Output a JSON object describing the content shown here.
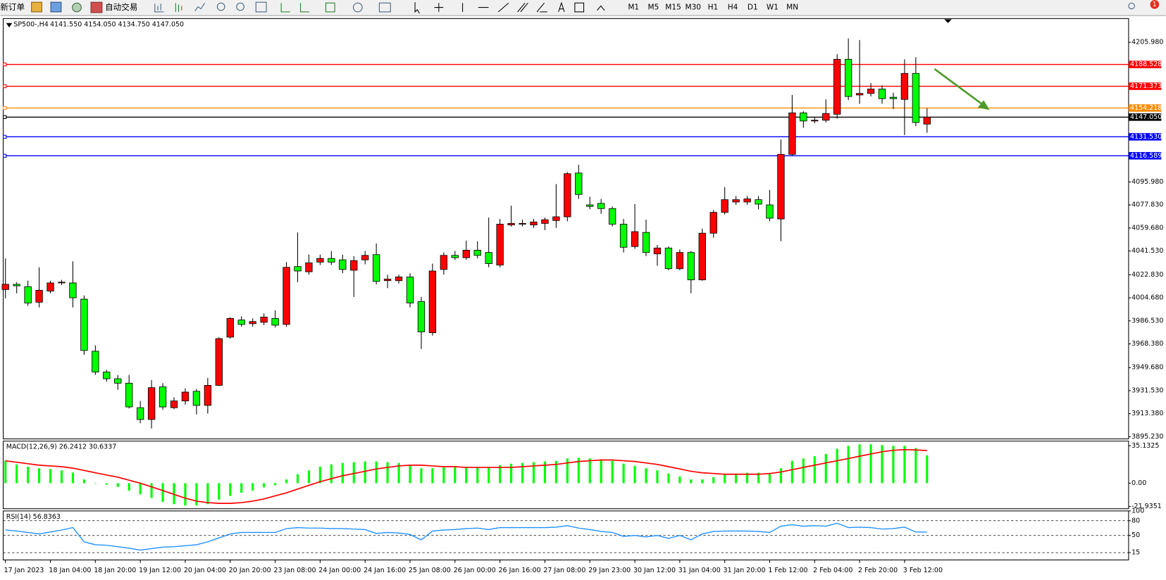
{
  "toolbar": {
    "new_order": "新订单",
    "auto_trading": "自动交易",
    "timeframes": [
      "M1",
      "M5",
      "M15",
      "M30",
      "H1",
      "H4",
      "D1",
      "W1",
      "MN"
    ],
    "notification": "1"
  },
  "chart_data": [
    {
      "type": "candlestick",
      "title": "SP500-,H4",
      "subtitle": "4141.550 4154.050 4134.750 4147.050",
      "categories": [
        "17 Jan 2023",
        null,
        null,
        null,
        "18 Jan 04:00",
        null,
        null,
        null,
        "18 Jan 20:00",
        null,
        null,
        null,
        "19 Jan 12:00",
        null,
        null,
        null,
        "20 Jan 04:00",
        null,
        null,
        null,
        "20 Jan 20:00",
        null,
        null,
        null,
        "23 Jan 08:00",
        null,
        null,
        null,
        "24 Jan 00:00",
        null,
        null,
        null,
        "24 Jan 16:00",
        null,
        null,
        null,
        "25 Jan 08:00",
        null,
        null,
        null,
        "26 Jan 00:00",
        null,
        null,
        null,
        "26 Jan 16:00",
        null,
        null,
        null,
        "27 Jan 08:00",
        null,
        null,
        null,
        "29 Jan 23:00",
        null,
        null,
        null,
        "30 Jan 12:00",
        null,
        null,
        null,
        "31 Jan 04:00",
        null,
        null,
        null,
        "31 Jan 20:00",
        null,
        null,
        null,
        "1 Feb 12:00",
        null,
        null,
        null,
        "2 Feb 04:00",
        null,
        null,
        null,
        "2 Feb 20:00",
        null,
        null,
        null,
        "3 Feb 12:00",
        null,
        null
      ],
      "open": [
        4011.2,
        4015.3,
        4013.5,
        4001.2,
        4010.0,
        4016.4,
        4016.4,
        4003.6,
        3962.6,
        3946.2,
        3940.9,
        3937.4,
        3918.1,
        3908.8,
        3934.5,
        3918.1,
        3923.4,
        3931.0,
        3919.9,
        3935.7,
        3973.7,
        3987.2,
        3984.3,
        3985.4,
        3988.4,
        3983.7,
        4029.3,
        4025.2,
        4032.8,
        4035.7,
        4034.6,
        4026.4,
        4034.6,
        4038.7,
        4018.2,
        4018.2,
        4021.1,
        4001.8,
        3977.2,
        4027.0,
        4038.1,
        4036.3,
        4042.2,
        4040.4,
        4030.5,
        4062.1,
        4062.7,
        4062.1,
        4063.3,
        4065.6,
        4068.5,
        4103.0,
        4077.9,
        4079.1,
        4075.0,
        4062.7,
        4045.1,
        4056.2,
        4039.3,
        4043.9,
        4027.6,
        4040.4,
        4018.8,
        4055.6,
        4072.0,
        4080.2,
        4080.2,
        4082.0,
        4077.9,
        4066.8,
        4117.7,
        4150.4,
        4144.0,
        4144.6,
        4149.3,
        4192.6,
        4164.5,
        4165.7,
        4169.2,
        4162.7,
        4161.0,
        4181.5,
        4141.55
      ],
      "high": [
        4035.7,
        4017.0,
        4018.2,
        4028.7,
        4018.2,
        4018.8,
        4033.4,
        4006.5,
        3967.3,
        3948.0,
        3943.9,
        3943.9,
        3923.4,
        3939.8,
        3937.4,
        3926.3,
        3933.3,
        3932.8,
        3941.5,
        3973.7,
        3989.5,
        3990.1,
        3988.4,
        3992.4,
        3994.8,
        4032.8,
        4056.2,
        4038.7,
        4038.7,
        4041.6,
        4038.7,
        4037.5,
        4041.6,
        4047.5,
        4022.9,
        4022.9,
        4024.0,
        4005.3,
        4031.6,
        4040.4,
        4041.6,
        4049.8,
        4049.2,
        4067.9,
        4066.8,
        4077.3,
        4066.2,
        4066.8,
        4067.9,
        4094.3,
        4103.7,
        4109.5,
        4084.3,
        4082.6,
        4076.7,
        4066.8,
        4078.5,
        4066.2,
        4046.3,
        4045.1,
        4042.8,
        4041.6,
        4059.2,
        4073.8,
        4091.9,
        4084.9,
        4084.9,
        4084.9,
        4089.6,
        4129.4,
        4164.5,
        4151.6,
        4146.9,
        4161.0,
        4196.7,
        4209.0,
        4207.8,
        4173.9,
        4172.1,
        4166.3,
        4192.6,
        4194.3,
        4154.05
      ],
      "low": [
        4004.2,
        4008.2,
        3998.3,
        3997.1,
        4008.2,
        4014.7,
        3997.1,
        3959.7,
        3943.9,
        3938.6,
        3932.2,
        3917.5,
        3905.8,
        3901.7,
        3916.4,
        3916.9,
        3920.5,
        3912.8,
        3913.4,
        3935.1,
        3972.5,
        3981.9,
        3981.9,
        3983.1,
        3981.3,
        3981.9,
        4017.0,
        4022.9,
        4030.5,
        4030.5,
        4024.0,
        4005.3,
        4031.0,
        4015.3,
        4012.3,
        4015.9,
        3997.1,
        3964.3,
        3974.9,
        4022.9,
        4034.6,
        4034.6,
        4035.7,
        4028.7,
        4028.7,
        4060.9,
        4060.9,
        4059.8,
        4058.0,
        4059.8,
        4065.0,
        4082.6,
        4074.4,
        4070.9,
        4060.9,
        4040.4,
        4043.3,
        4037.5,
        4029.9,
        4026.4,
        4026.4,
        4008.2,
        4018.2,
        4052.1,
        4070.3,
        4077.9,
        4077.9,
        4074.4,
        4065.0,
        4049.2,
        4116.5,
        4138.7,
        4142.2,
        4142.8,
        4145.8,
        4160.4,
        4157.5,
        4163.3,
        4157.5,
        4153.4,
        4132.9,
        4139.9,
        4134.75
      ],
      "close": [
        4015.3,
        4014.1,
        4000.6,
        4010.6,
        4016.4,
        4017.0,
        4004.7,
        3963.2,
        3946.2,
        3940.9,
        3937.4,
        3918.7,
        3908.8,
        3933.9,
        3918.7,
        3923.4,
        3930.4,
        3919.9,
        3935.7,
        3972.5,
        3988.4,
        3983.7,
        3986.0,
        3989.5,
        3983.1,
        4028.7,
        4025.8,
        4032.2,
        4035.7,
        4032.8,
        4027.0,
        4034.0,
        4038.1,
        4017.6,
        4019.4,
        4021.1,
        4000.6,
        3977.8,
        4025.8,
        4038.1,
        4036.3,
        4042.2,
        4038.1,
        4031.6,
        4062.7,
        4063.3,
        4063.3,
        4064.4,
        4066.2,
        4068.5,
        4102.5,
        4086.1,
        4076.7,
        4075.0,
        4062.7,
        4044.5,
        4056.8,
        4040.4,
        4043.9,
        4027.6,
        4040.4,
        4018.8,
        4055.6,
        4072.0,
        4082.0,
        4082.0,
        4082.6,
        4078.5,
        4067.4,
        4117.7,
        4150.4,
        4144.0,
        4144.6,
        4149.9,
        4192.6,
        4163.3,
        4165.7,
        4169.2,
        4161.6,
        4161.6,
        4181.5,
        4142.8,
        4147.05
      ],
      "up_color": "#ff0000",
      "down_color": "#00ff00",
      "ylim": [
        3893.5,
        4224.7
      ],
      "yticks": [
        {
          "value": 4205.98,
          "label": "4205.980"
        },
        {
          "value": 4095.98,
          "label": "4095.980"
        },
        {
          "value": 4077.83,
          "label": "4077.830"
        },
        {
          "value": 4059.68,
          "label": "4059.680"
        },
        {
          "value": 4041.53,
          "label": "4041.530"
        },
        {
          "value": 4022.83,
          "label": "4022.830"
        },
        {
          "value": 4004.68,
          "label": "4004.680"
        },
        {
          "value": 3986.53,
          "label": "3986.530"
        },
        {
          "value": 3968.38,
          "label": "3968.380"
        },
        {
          "value": 3949.68,
          "label": "3949.680"
        },
        {
          "value": 3931.53,
          "label": "3931.530"
        },
        {
          "value": 3913.38,
          "label": "3913.380"
        },
        {
          "value": 3895.23,
          "label": "3895.230"
        }
      ],
      "levels": [
        {
          "value": 4188.528,
          "color": "#ff0000"
        },
        {
          "value": 4171.373,
          "color": "#ff0000"
        },
        {
          "value": 4154.218,
          "color": "#ff8c00"
        },
        {
          "value": 4147.05,
          "label": "4147.050",
          "color": "#000000"
        },
        {
          "value": 4131.53,
          "label": "4131.530",
          "color": "#0000ff"
        },
        {
          "value": 4116.589,
          "color": "#0000ff"
        }
      ]
    },
    {
      "type": "macd",
      "title": "MACD(12,26,9) 26.2412 30.6337",
      "series": [
        {
          "color": "#00ff00",
          "values": [
            21,
            17.6,
            15.5,
            14,
            13.3,
            12,
            10,
            3.5,
            0,
            -1.4,
            -3.5,
            -7,
            -10.5,
            -14,
            -17.6,
            -19.7,
            -21,
            -21,
            -19.7,
            -15.5,
            -12,
            -9,
            -7,
            -4,
            -2,
            3.5,
            8.4,
            12,
            15.5,
            17.6,
            19,
            19.7,
            20.4,
            20.4,
            19.7,
            19,
            16.9,
            14,
            14,
            14.8,
            14.8,
            15.5,
            15.5,
            15.5,
            16.9,
            18.3,
            19,
            19.7,
            20.4,
            21,
            23.2,
            23.9,
            23.2,
            22.5,
            21,
            18.3,
            16.2,
            14,
            12,
            9.1,
            6.3,
            3.5,
            3.5,
            5.6,
            8.4,
            9.1,
            9.8,
            9.8,
            9.1,
            14,
            21,
            23.2,
            25.3,
            27.4,
            32.3,
            35.1,
            36.5,
            36.5,
            35.8,
            35.1,
            35.1,
            33,
            26.2412
          ]
        },
        {
          "color": "#ff0000",
          "values": [
            21,
            19.7,
            18.3,
            16.9,
            16.2,
            15.5,
            14.1,
            12,
            9.8,
            7.7,
            5.6,
            2.8,
            0,
            -3.5,
            -7,
            -10.5,
            -14.1,
            -16.9,
            -18.3,
            -19,
            -19,
            -18.3,
            -16.9,
            -14.8,
            -11.9,
            -9.1,
            -5.6,
            -2.1,
            1.4,
            4.2,
            7,
            9.1,
            11.2,
            13.4,
            14.8,
            16.2,
            16.9,
            16.9,
            16.2,
            15.5,
            15.5,
            14.8,
            14.8,
            14.8,
            14.8,
            14.8,
            15.5,
            16.2,
            16.9,
            17.6,
            19,
            20.4,
            21.1,
            21.8,
            21.8,
            21.1,
            20.4,
            19,
            17.6,
            15.5,
            13.4,
            11.2,
            9.8,
            9.1,
            8.4,
            8.4,
            8.4,
            8.4,
            9.1,
            10.5,
            12.6,
            14.8,
            16.9,
            19,
            21.1,
            23.2,
            25.3,
            27.4,
            29.5,
            30.9,
            31.5,
            31.2,
            30.6337
          ]
        }
      ],
      "ylim": [
        -24,
        39.5
      ],
      "yticks": [
        35.1325,
        {
          "value": 0,
          "label": "0.00"
        },
        -21.9351
      ]
    },
    {
      "type": "line",
      "title": "RSI(14) 56.8363",
      "color": "#1e90ff",
      "values": [
        61,
        59,
        56,
        53,
        57,
        61,
        66,
        37,
        31,
        30,
        27,
        24,
        20,
        23,
        26,
        27,
        29,
        31,
        37,
        45,
        53,
        56,
        56,
        56,
        56,
        64,
        66,
        65,
        65,
        64,
        64,
        63,
        62,
        54,
        56,
        55,
        52,
        41,
        59,
        61,
        62,
        64,
        65,
        62,
        66,
        66,
        66,
        66,
        66,
        67,
        70,
        65,
        62,
        58,
        56,
        48,
        50,
        47,
        50,
        44,
        50,
        41,
        53,
        58,
        59,
        59,
        59,
        58,
        56,
        69,
        72,
        69,
        70,
        69,
        75,
        66,
        67,
        66,
        63,
        64,
        67,
        57,
        56.8363
      ],
      "ylim": [
        0,
        100
      ],
      "yticks": [
        100,
        80,
        50,
        15
      ],
      "grid": "dashed"
    }
  ]
}
